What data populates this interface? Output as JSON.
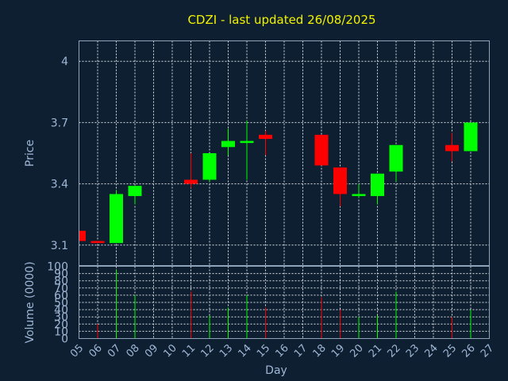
{
  "chart_data": {
    "type": "candlestick",
    "title": "CDZI - last updated 26/08/2025",
    "price_axis": {
      "label": "Price",
      "ylim": [
        3.0,
        4.1
      ],
      "ticks": [
        "3.1",
        "3.4",
        "3.7",
        "4"
      ]
    },
    "volume_axis": {
      "label": "Volume (0000)",
      "ylim": [
        0,
        100
      ],
      "ticks": [
        "0",
        "10",
        "20",
        "30",
        "40",
        "50",
        "60",
        "70",
        "80",
        "90",
        "100"
      ]
    },
    "xlabel": "Day",
    "x_ticks": [
      "05",
      "06",
      "07",
      "08",
      "09",
      "10",
      "11",
      "12",
      "13",
      "14",
      "15",
      "16",
      "17",
      "18",
      "19",
      "20",
      "21",
      "22",
      "23",
      "24",
      "25",
      "26",
      "27"
    ],
    "grid": true,
    "colors": {
      "up": "#00ff00",
      "down": "#ff0000",
      "background": "#0d1f30",
      "text": "#9fb7d6",
      "title": "#f2f200"
    },
    "candles": [
      {
        "day": "05",
        "open": 3.17,
        "high": 3.17,
        "low": 3.12,
        "close": 3.12,
        "volume": 0
      },
      {
        "day": "06",
        "open": 3.12,
        "high": 3.12,
        "low": 3.11,
        "close": 3.11,
        "volume": 20
      },
      {
        "day": "07",
        "open": 3.11,
        "high": 3.37,
        "low": 3.11,
        "close": 3.35,
        "volume": 95
      },
      {
        "day": "08",
        "open": 3.34,
        "high": 3.39,
        "low": 3.3,
        "close": 3.39,
        "volume": 60
      },
      {
        "day": "11",
        "open": 3.42,
        "high": 3.55,
        "low": 3.38,
        "close": 3.4,
        "volume": 65
      },
      {
        "day": "12",
        "open": 3.42,
        "high": 3.55,
        "low": 3.41,
        "close": 3.55,
        "volume": 32
      },
      {
        "day": "13",
        "open": 3.58,
        "high": 3.67,
        "low": 3.54,
        "close": 3.61,
        "volume": 43
      },
      {
        "day": "14",
        "open": 3.6,
        "high": 3.71,
        "low": 3.42,
        "close": 3.61,
        "volume": 60
      },
      {
        "day": "15",
        "open": 3.64,
        "high": 3.66,
        "low": 3.54,
        "close": 3.62,
        "volume": 43
      },
      {
        "day": "18",
        "open": 3.64,
        "high": 3.64,
        "low": 3.49,
        "close": 3.49,
        "volume": 57
      },
      {
        "day": "19",
        "open": 3.48,
        "high": 3.48,
        "low": 3.29,
        "close": 3.35,
        "volume": 40
      },
      {
        "day": "20",
        "open": 3.34,
        "high": 3.4,
        "low": 3.33,
        "close": 3.35,
        "volume": 30
      },
      {
        "day": "21",
        "open": 3.34,
        "high": 3.45,
        "low": 3.3,
        "close": 3.45,
        "volume": 32
      },
      {
        "day": "22",
        "open": 3.46,
        "high": 3.59,
        "low": 3.41,
        "close": 3.59,
        "volume": 65
      },
      {
        "day": "25",
        "open": 3.59,
        "high": 3.65,
        "low": 3.51,
        "close": 3.56,
        "volume": 30
      },
      {
        "day": "26",
        "open": 3.56,
        "high": 3.7,
        "low": 3.56,
        "close": 3.7,
        "volume": 40
      }
    ]
  }
}
